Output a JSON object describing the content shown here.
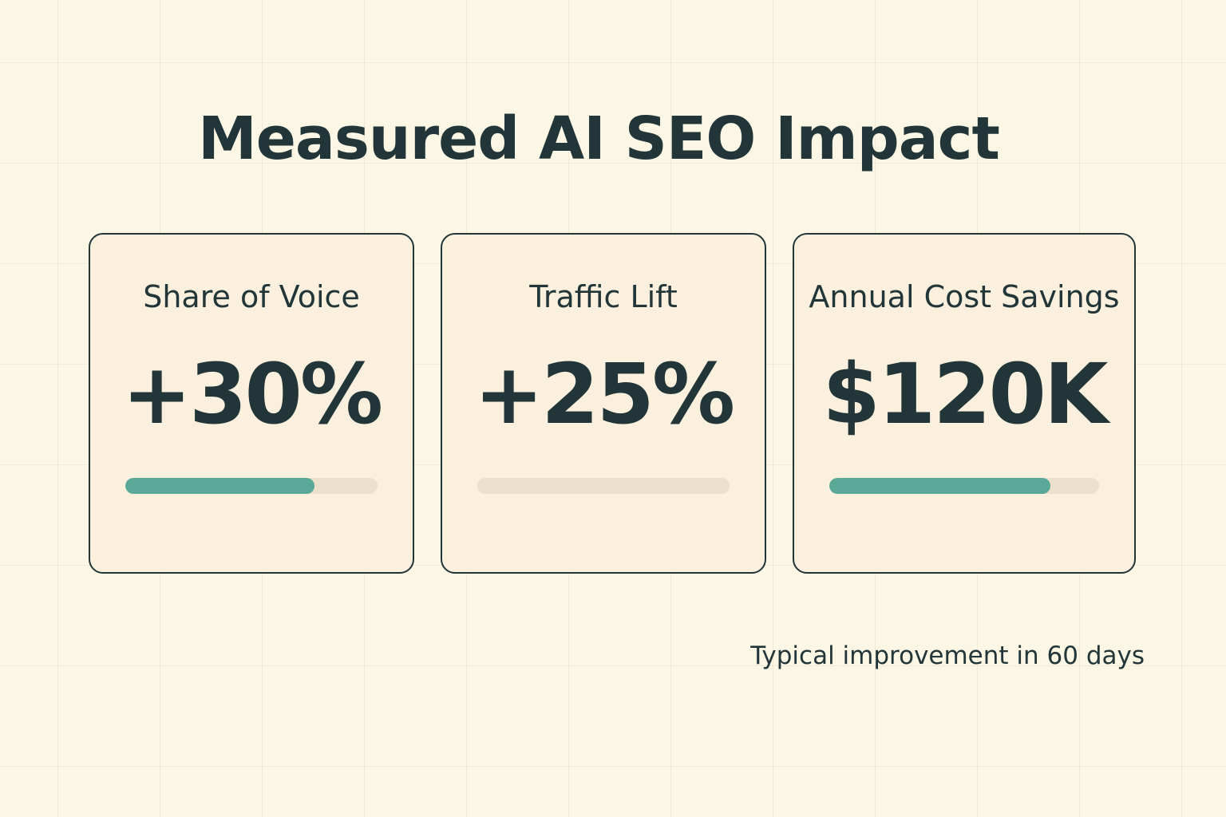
{
  "title": "Measured AI SEO Impact",
  "cards": [
    {
      "label": "Share of Voice",
      "value": "+30%",
      "progress": 0.75
    },
    {
      "label": "Traffic Lift",
      "value": "+25%",
      "progress": 0
    },
    {
      "label": "Annual Cost Savings",
      "value": "$120K",
      "progress": 0.82
    }
  ],
  "footnote": "Typical improvement in 60 days",
  "colors": {
    "background": "#fcf6e5",
    "card_background": "#faf0dd",
    "text": "#223538",
    "accent": "#5aa897",
    "track": "#ece0cc"
  }
}
